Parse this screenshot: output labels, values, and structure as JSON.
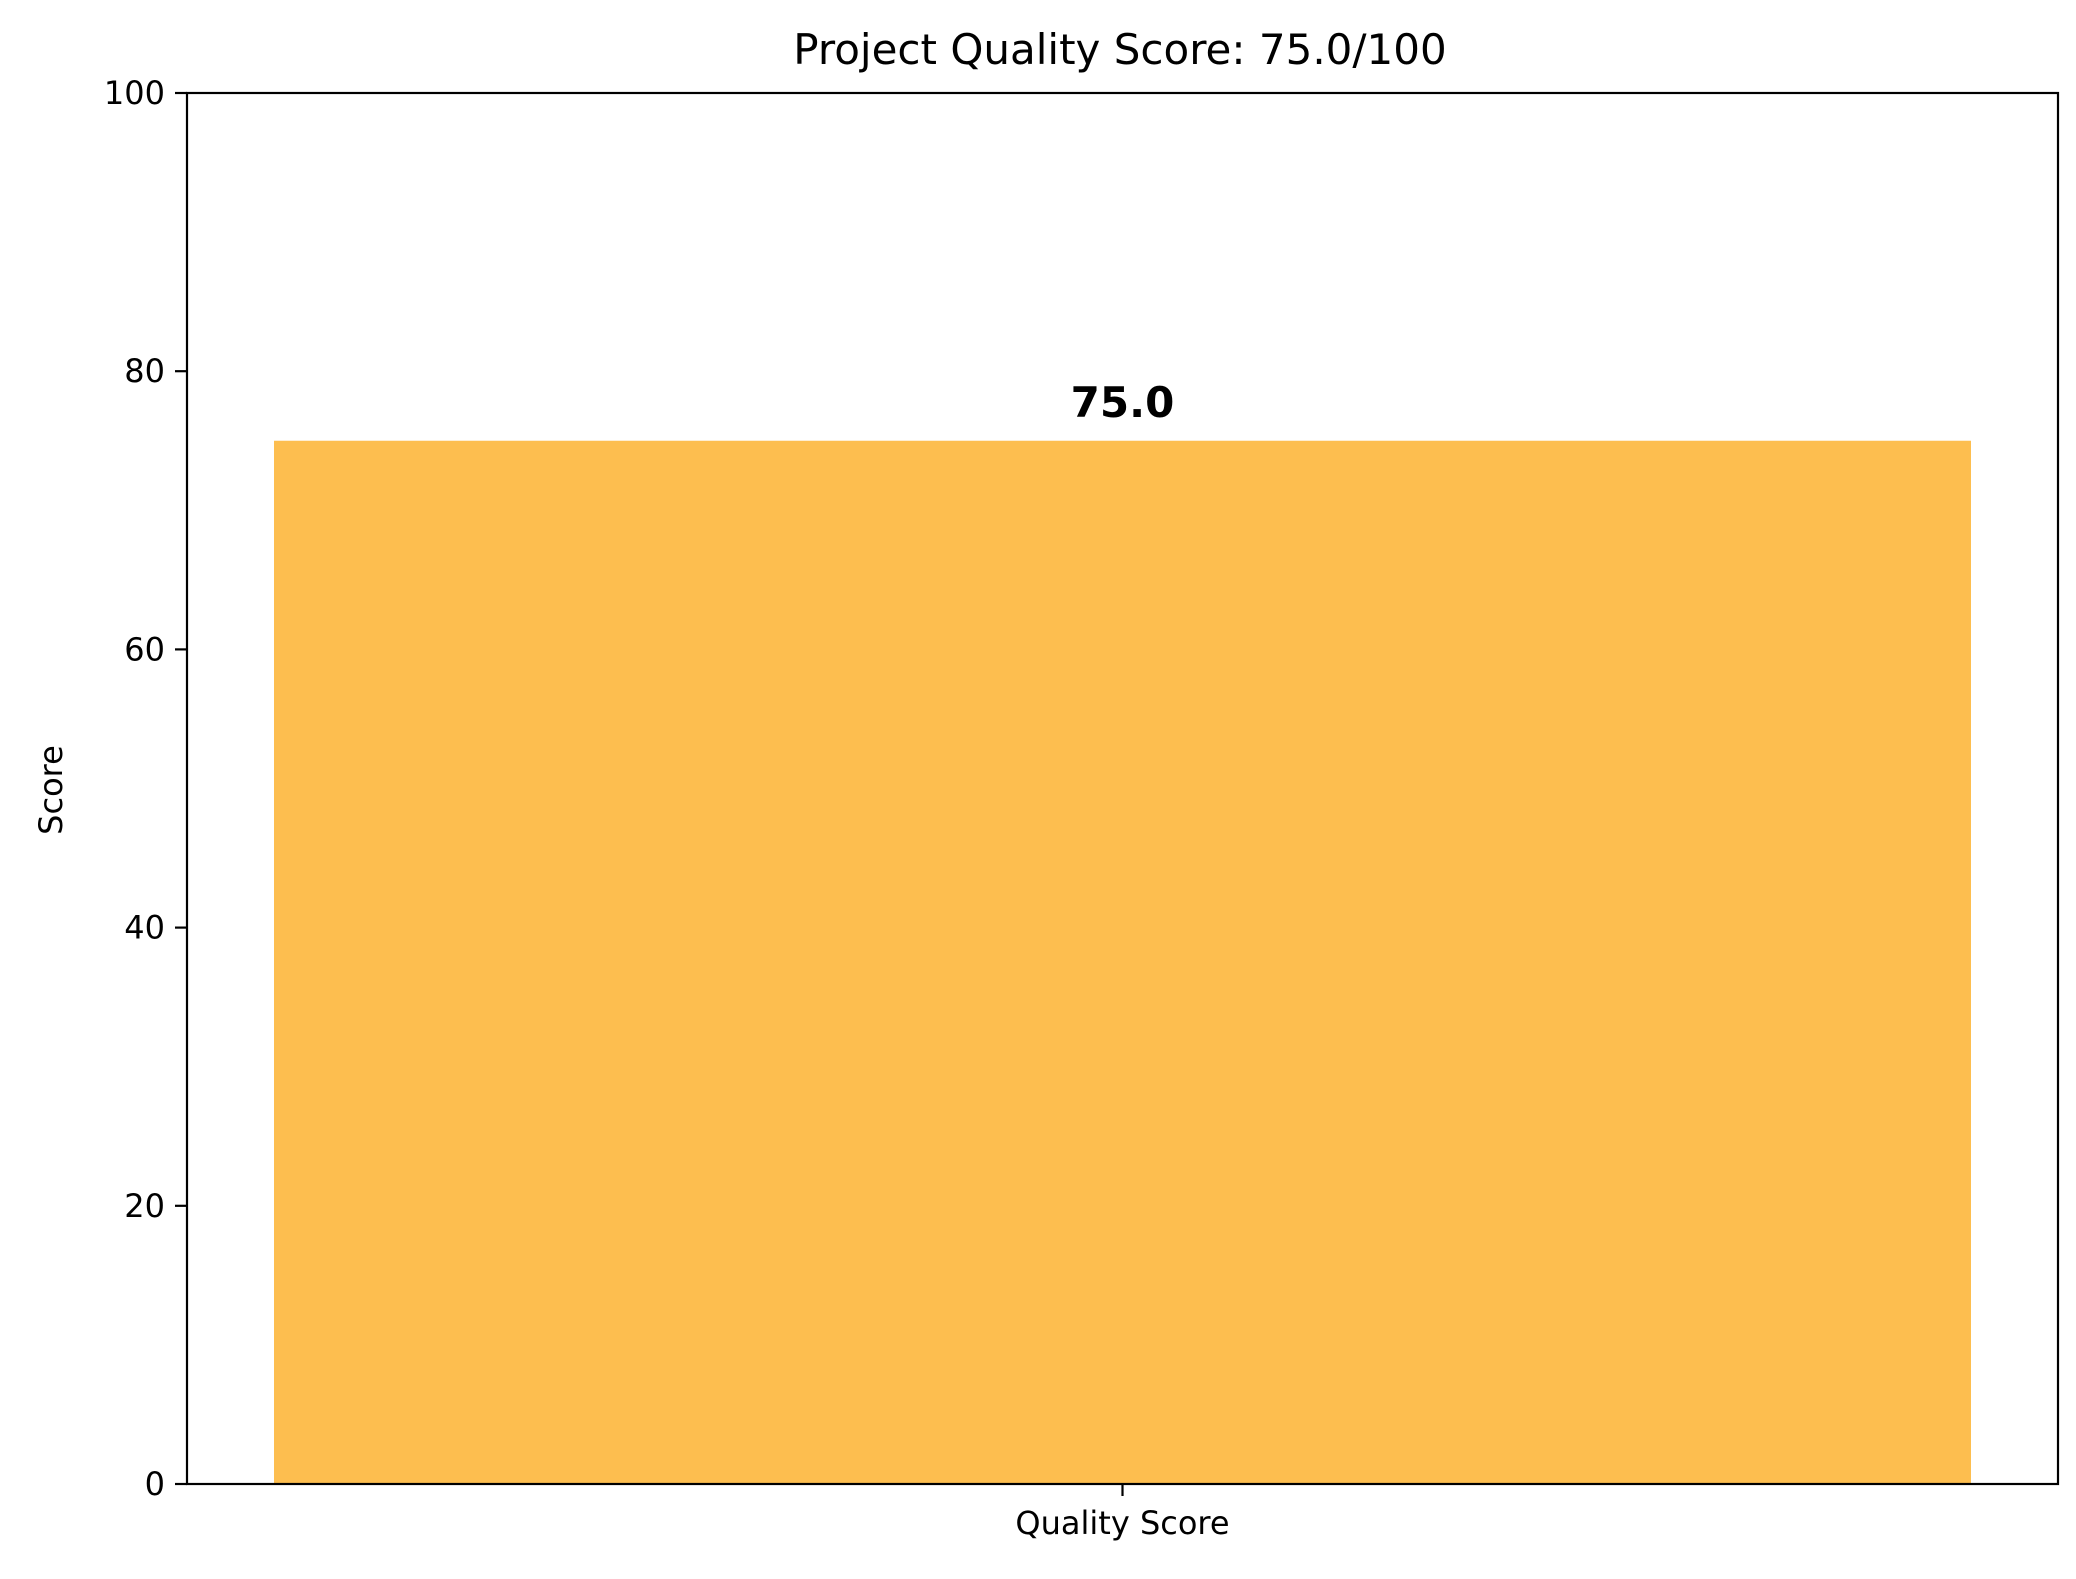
{
  "chart_data": {
    "type": "bar",
    "title": "Project Quality Score: 75.0/100",
    "xlabel": "",
    "ylabel": "Score",
    "categories": [
      "Quality Score"
    ],
    "values": [
      75.0
    ],
    "value_labels": [
      "75.0"
    ],
    "ylim": [
      0,
      100
    ],
    "yticks": [
      0,
      20,
      40,
      60,
      80,
      100
    ],
    "ytick_labels": [
      "0",
      "20",
      "40",
      "60",
      "80",
      "100"
    ],
    "grid": false,
    "legend": "none",
    "bar_color": "#fdbe4f",
    "axis_color": "#000000"
  }
}
